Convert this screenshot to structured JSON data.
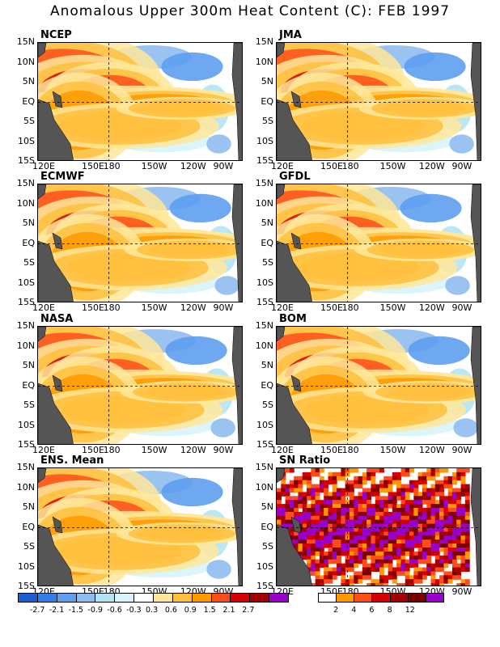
{
  "title": "Anomalous Upper 300m Heat Content (C): FEB 1997",
  "y_ticks": [
    "15N",
    "10N",
    "5N",
    "EQ",
    "5S",
    "10S",
    "15S"
  ],
  "x_ticks": [
    "120E",
    "150E",
    "180",
    "150W",
    "120W",
    "90W"
  ],
  "panels": [
    {
      "label": "NCEP"
    },
    {
      "label": "JMA"
    },
    {
      "label": "ECMWF"
    },
    {
      "label": "GFDL"
    },
    {
      "label": "NASA"
    },
    {
      "label": "BOM"
    },
    {
      "label": "ENS. Mean"
    },
    {
      "label": "SN Ratio"
    }
  ],
  "legend_anomaly": {
    "colors": [
      "#1a5fcf",
      "#2f7fe8",
      "#5d9ff0",
      "#8fbcf0",
      "#b3e4f5",
      "#d8f4fb",
      "#ffffff",
      "#ffe79a",
      "#ffbf3d",
      "#ff9900",
      "#ff4d1a",
      "#d60000",
      "#a30000",
      "#9900cc"
    ],
    "labels": [
      "-2.7",
      "-2.1",
      "-1.5",
      "-0.9",
      "-0.6",
      "-0.3",
      "0.3",
      "0.6",
      "0.9",
      "1.5",
      "2.1",
      "2.7"
    ]
  },
  "legend_sn": {
    "colors": [
      "#ffffff",
      "#ff9900",
      "#ff4d1a",
      "#d60000",
      "#a30000",
      "#7a0000",
      "#9900cc"
    ],
    "labels": [
      "2",
      "4",
      "6",
      "8",
      "12"
    ]
  },
  "colors": {
    "land": "#555555",
    "axis": "#000000"
  }
}
